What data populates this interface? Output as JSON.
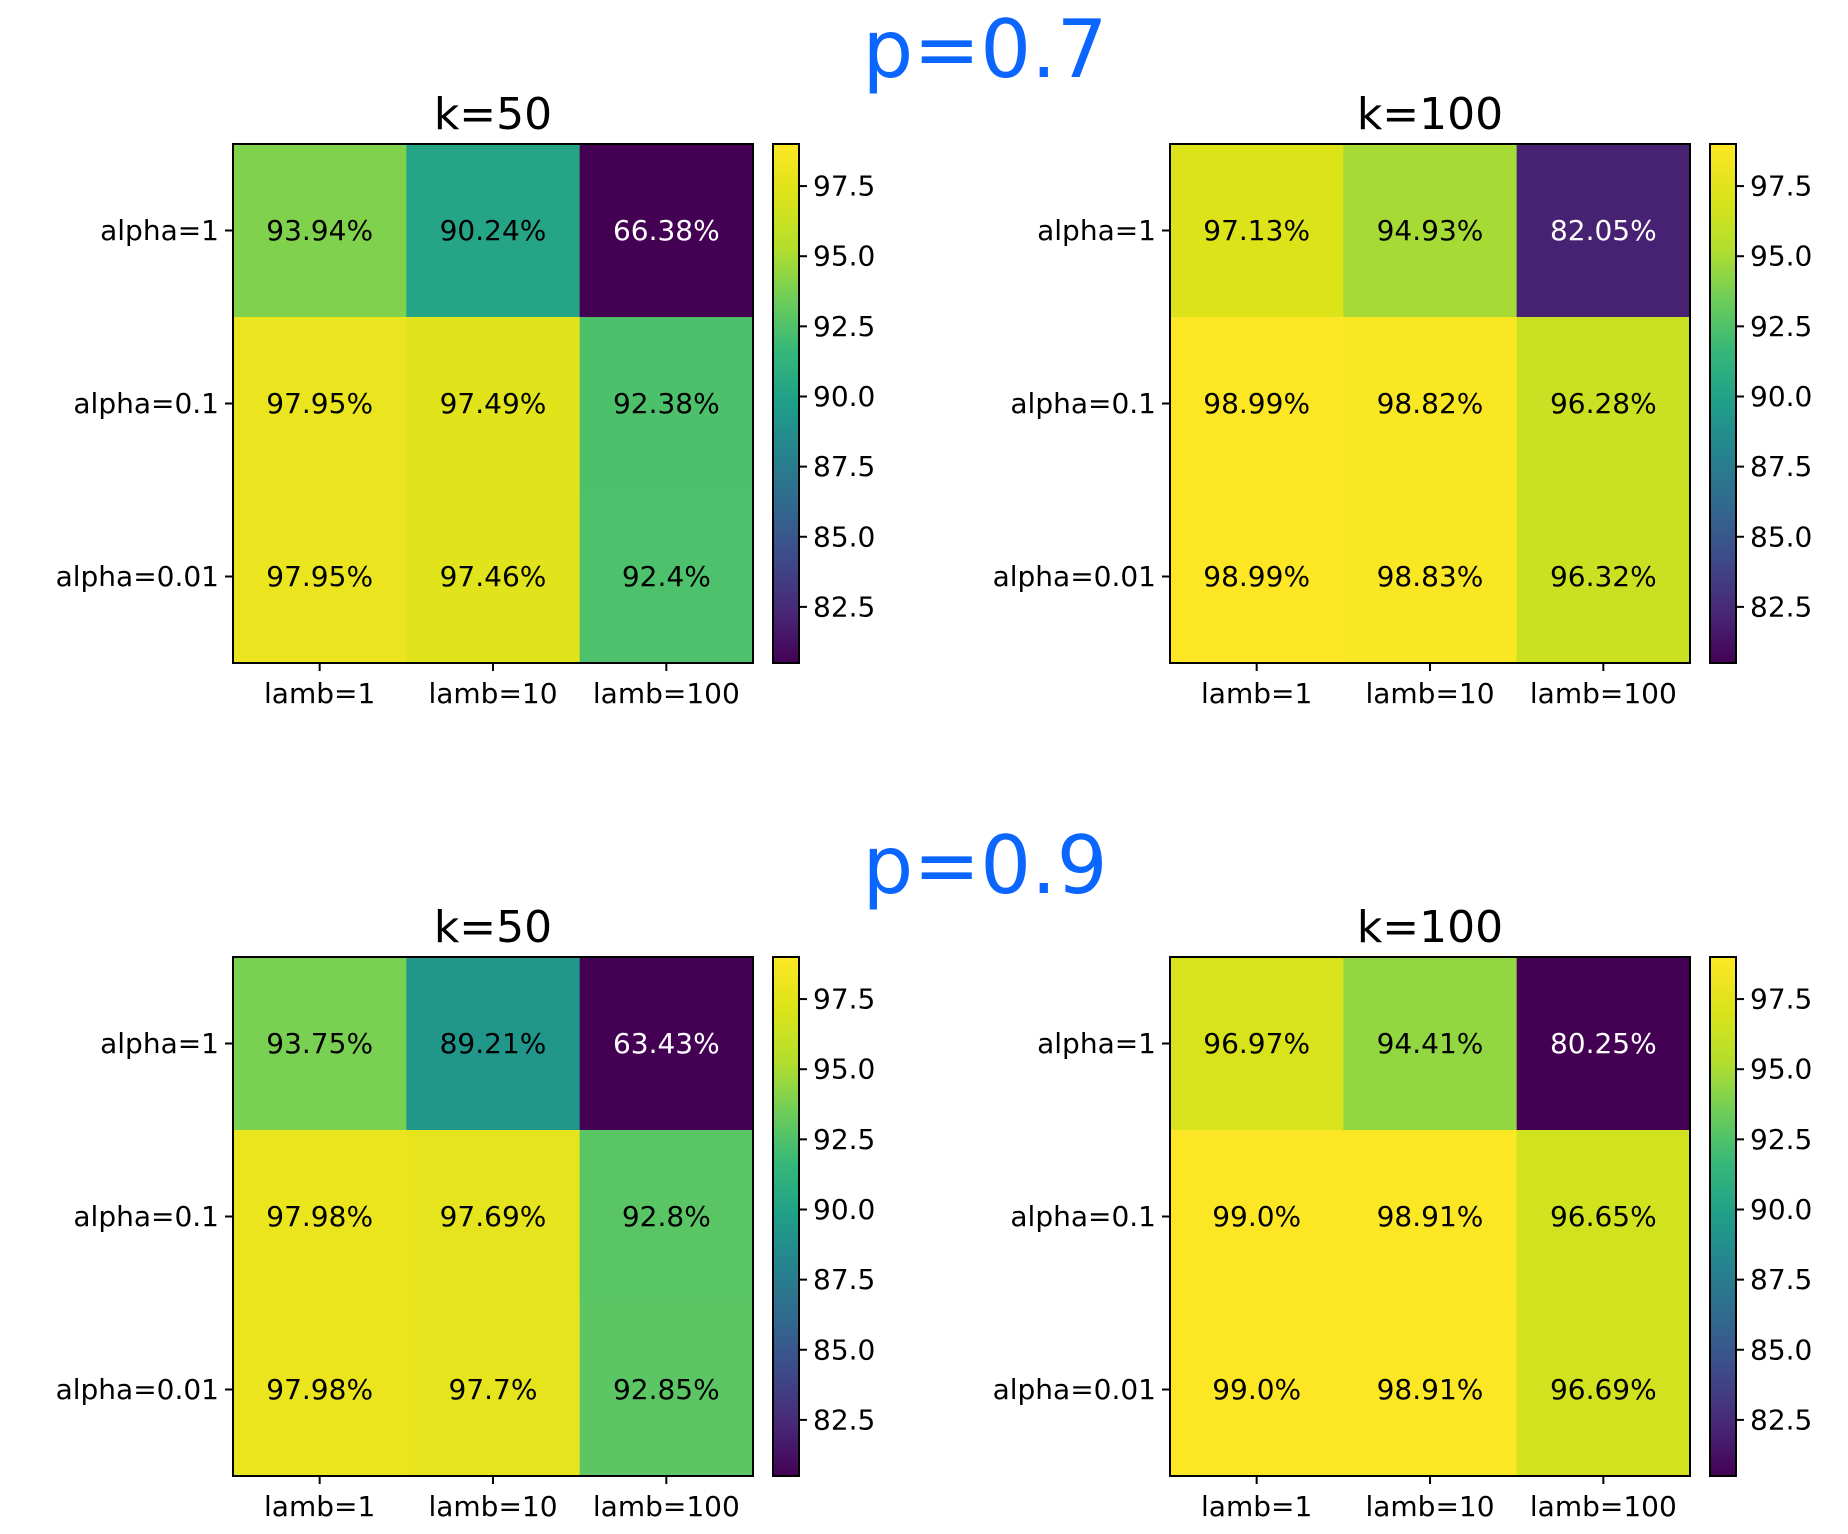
{
  "section_titles": [
    "p=0.7",
    "p=0.9"
  ],
  "colors": {
    "section_title": "#0a66ff",
    "colormap": "viridis"
  },
  "chart_data": [
    {
      "type": "heatmap",
      "section": "p=0.7",
      "title": "k=50",
      "rows": [
        "alpha=1",
        "alpha=0.1",
        "alpha=0.01"
      ],
      "cols": [
        "lamb=1",
        "lamb=10",
        "lamb=100"
      ],
      "values": [
        [
          93.94,
          90.24,
          66.38
        ],
        [
          97.95,
          97.49,
          92.38
        ],
        [
          97.95,
          97.46,
          92.4
        ]
      ],
      "labels": [
        [
          "93.94%",
          "90.24%",
          "66.38%"
        ],
        [
          "97.95%",
          "97.49%",
          "92.38%"
        ],
        [
          "97.95%",
          "97.46%",
          "92.4%"
        ]
      ],
      "colorbar": {
        "vmin": 80.5,
        "vmax": 99.0,
        "ticks": [
          "97.5",
          "95.0",
          "92.5",
          "90.0",
          "87.5",
          "85.0",
          "82.5"
        ]
      }
    },
    {
      "type": "heatmap",
      "section": "p=0.7",
      "title": "k=100",
      "rows": [
        "alpha=1",
        "alpha=0.1",
        "alpha=0.01"
      ],
      "cols": [
        "lamb=1",
        "lamb=10",
        "lamb=100"
      ],
      "values": [
        [
          97.13,
          94.93,
          82.05
        ],
        [
          98.99,
          98.82,
          96.28
        ],
        [
          98.99,
          98.83,
          96.32
        ]
      ],
      "labels": [
        [
          "97.13%",
          "94.93%",
          "82.05%"
        ],
        [
          "98.99%",
          "98.82%",
          "96.28%"
        ],
        [
          "98.99%",
          "98.83%",
          "96.32%"
        ]
      ],
      "colorbar": {
        "vmin": 80.5,
        "vmax": 99.0,
        "ticks": [
          "97.5",
          "95.0",
          "92.5",
          "90.0",
          "87.5",
          "85.0",
          "82.5"
        ]
      }
    },
    {
      "type": "heatmap",
      "section": "p=0.9",
      "title": "k=50",
      "rows": [
        "alpha=1",
        "alpha=0.1",
        "alpha=0.01"
      ],
      "cols": [
        "lamb=1",
        "lamb=10",
        "lamb=100"
      ],
      "values": [
        [
          93.75,
          89.21,
          63.43
        ],
        [
          97.98,
          97.69,
          92.8
        ],
        [
          97.98,
          97.7,
          92.85
        ]
      ],
      "labels": [
        [
          "93.75%",
          "89.21%",
          "63.43%"
        ],
        [
          "97.98%",
          "97.69%",
          "92.8%"
        ],
        [
          "97.98%",
          "97.7%",
          "92.85%"
        ]
      ],
      "colorbar": {
        "vmin": 80.5,
        "vmax": 99.0,
        "ticks": [
          "97.5",
          "95.0",
          "92.5",
          "90.0",
          "87.5",
          "85.0",
          "82.5"
        ]
      }
    },
    {
      "type": "heatmap",
      "section": "p=0.9",
      "title": "k=100",
      "rows": [
        "alpha=1",
        "alpha=0.1",
        "alpha=0.01"
      ],
      "cols": [
        "lamb=1",
        "lamb=10",
        "lamb=100"
      ],
      "values": [
        [
          96.97,
          94.41,
          80.25
        ],
        [
          99.0,
          98.91,
          96.65
        ],
        [
          99.0,
          98.91,
          96.69
        ]
      ],
      "labels": [
        [
          "96.97%",
          "94.41%",
          "80.25%"
        ],
        [
          "99.0%",
          "98.91%",
          "96.65%"
        ],
        [
          "99.0%",
          "98.91%",
          "96.69%"
        ]
      ],
      "colorbar": {
        "vmin": 80.5,
        "vmax": 99.0,
        "ticks": [
          "97.5",
          "95.0",
          "92.5",
          "90.0",
          "87.5",
          "85.0",
          "82.5"
        ]
      }
    }
  ]
}
